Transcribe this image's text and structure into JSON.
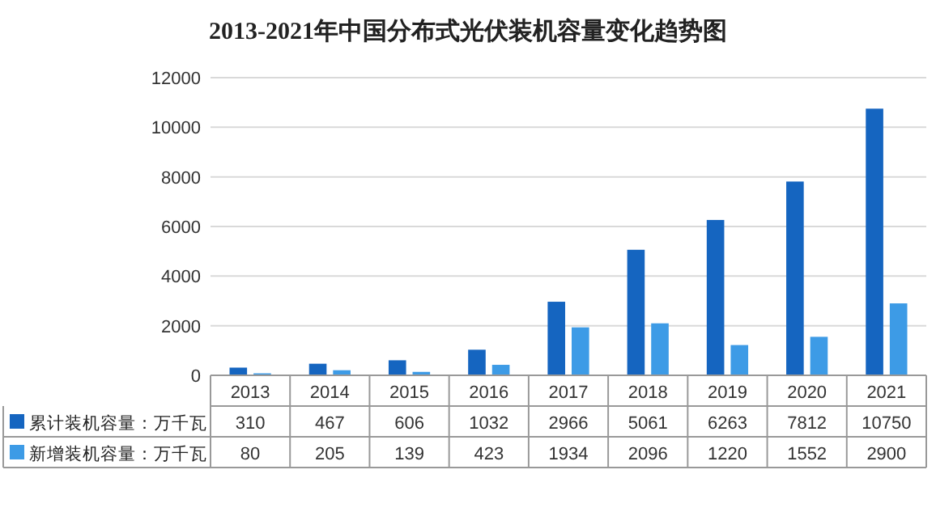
{
  "chart_data": {
    "type": "bar",
    "title": "2013-2021年中国分布式光伏装机容量变化趋势图",
    "categories": [
      "2013",
      "2014",
      "2015",
      "2016",
      "2017",
      "2018",
      "2019",
      "2020",
      "2021"
    ],
    "series": [
      {
        "name": "累计装机容量：万千瓦",
        "color": "#1565c0",
        "values": [
          310,
          467,
          606,
          1032,
          2966,
          5061,
          6263,
          7812,
          10750
        ]
      },
      {
        "name": "新增装机容量：万千瓦",
        "color": "#3d9be6",
        "values": [
          80,
          205,
          139,
          423,
          1934,
          2096,
          1220,
          1552,
          2900
        ]
      }
    ],
    "ylim": [
      0,
      12000
    ],
    "yticks": [
      0,
      2000,
      4000,
      6000,
      8000,
      10000,
      12000
    ],
    "grid": "y",
    "legend": "bottom",
    "data_labels": true
  }
}
